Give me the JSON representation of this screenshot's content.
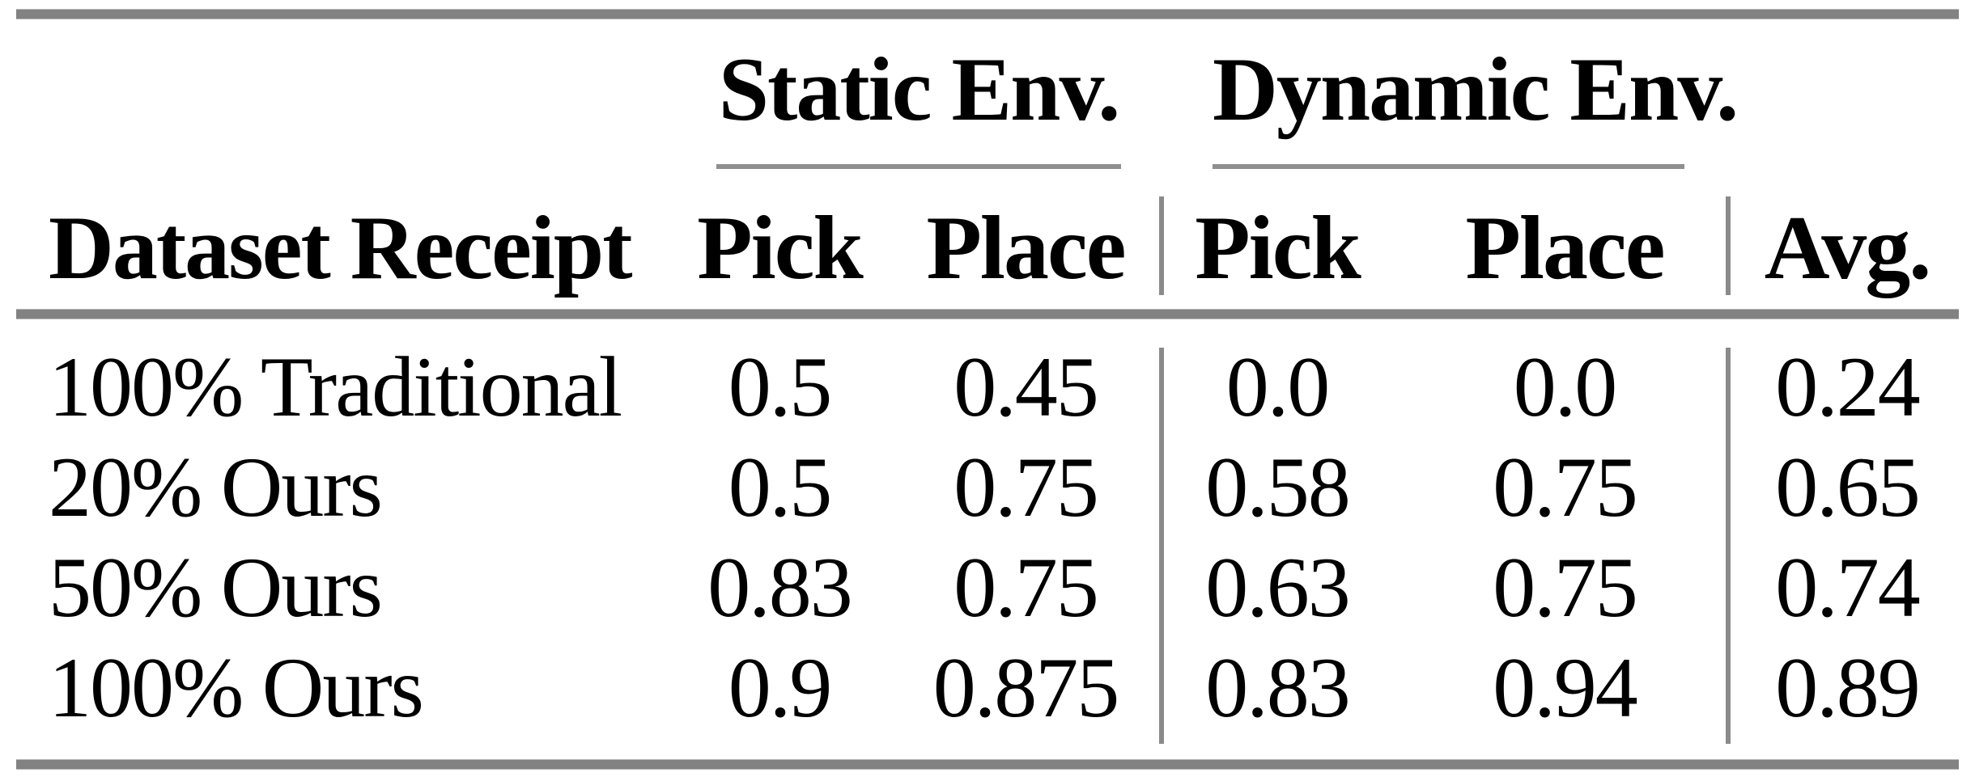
{
  "table": {
    "groups": [
      {
        "label": "Static Env."
      },
      {
        "label": "Dynamic Env."
      }
    ],
    "header": {
      "row_label": "Dataset Receipt",
      "static_pick": "Pick",
      "static_place": "Place",
      "dynamic_pick": "Pick",
      "dynamic_place": "Place",
      "avg": "Avg."
    },
    "rows": [
      {
        "label": "100% Traditional",
        "values": [
          "0.5",
          "0.45",
          "0.0",
          "0.0",
          "0.24"
        ]
      },
      {
        "label": "20% Ours",
        "values": [
          "0.5",
          "0.75",
          "0.58",
          "0.75",
          "0.65"
        ]
      },
      {
        "label": "50% Ours",
        "values": [
          "0.83",
          "0.75",
          "0.63",
          "0.75",
          "0.74"
        ]
      },
      {
        "label": "100% Ours",
        "values": [
          "0.9",
          "0.875",
          "0.83",
          "0.94",
          "0.89"
        ]
      }
    ],
    "colors": {
      "rule_heavy": "#828282",
      "rule_thin": "#8f8f8f",
      "text": "#000000",
      "background": "#ffffff"
    }
  },
  "chart_data": {
    "type": "table",
    "title": "",
    "column_groups": [
      "Static Env.",
      "Dynamic Env."
    ],
    "columns": [
      "Dataset Receipt",
      "Static Env. Pick",
      "Static Env. Place",
      "Dynamic Env. Pick",
      "Dynamic Env. Place",
      "Avg."
    ],
    "rows": [
      {
        "dataset_receipt": "100% Traditional",
        "static_pick": 0.5,
        "static_place": 0.45,
        "dynamic_pick": 0.0,
        "dynamic_place": 0.0,
        "avg": 0.24
      },
      {
        "dataset_receipt": "20% Ours",
        "static_pick": 0.5,
        "static_place": 0.75,
        "dynamic_pick": 0.58,
        "dynamic_place": 0.75,
        "avg": 0.65
      },
      {
        "dataset_receipt": "50% Ours",
        "static_pick": 0.83,
        "static_place": 0.75,
        "dynamic_pick": 0.63,
        "dynamic_place": 0.75,
        "avg": 0.74
      },
      {
        "dataset_receipt": "100% Ours",
        "static_pick": 0.9,
        "static_place": 0.875,
        "dynamic_pick": 0.83,
        "dynamic_place": 0.94,
        "avg": 0.89
      }
    ]
  }
}
